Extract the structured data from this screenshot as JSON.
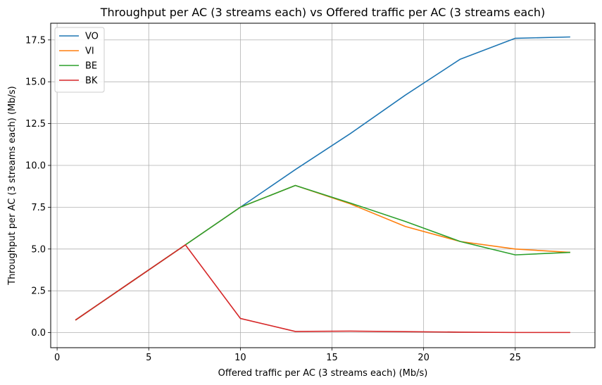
{
  "chart_data": {
    "type": "line",
    "title": "Throughput per AC (3 streams each) vs Offered traffic per AC (3 streams each)",
    "xlabel": "Offered traffic per AC (3 streams each) (Mb/s)",
    "ylabel": "Throughput per AC (3 streams each) (Mb/s)",
    "xlim": [
      -0.35,
      29.35
    ],
    "ylim": [
      -0.9,
      18.5
    ],
    "xticks": [
      0,
      5,
      10,
      15,
      20,
      25
    ],
    "xtick_labels": [
      "0",
      "5",
      "10",
      "15",
      "20",
      "25"
    ],
    "yticks": [
      0,
      2.5,
      5,
      7.5,
      10,
      12.5,
      15,
      17.5
    ],
    "ytick_labels": [
      "0.0",
      "2.5",
      "5.0",
      "7.5",
      "10.0",
      "12.5",
      "15.0",
      "17.5"
    ],
    "grid": true,
    "legend_position": "top-left",
    "x": [
      1,
      4,
      7,
      10,
      13,
      16,
      19,
      22,
      25,
      28
    ],
    "series": [
      {
        "name": "VO",
        "color": "#1f77b4",
        "values": [
          0.75,
          3.0,
          5.25,
          7.5,
          9.75,
          11.9,
          14.2,
          16.35,
          17.6,
          17.68
        ]
      },
      {
        "name": "VI",
        "color": "#ff7f0e",
        "values": [
          0.75,
          3.0,
          5.25,
          7.5,
          8.8,
          7.7,
          6.35,
          5.45,
          5.0,
          4.8
        ]
      },
      {
        "name": "BE",
        "color": "#2ca02c",
        "values": [
          0.75,
          3.0,
          5.25,
          7.5,
          8.8,
          7.75,
          6.65,
          5.45,
          4.65,
          4.8
        ]
      },
      {
        "name": "BK",
        "color": "#d62728",
        "values": [
          0.75,
          3.0,
          5.25,
          0.85,
          0.07,
          0.09,
          0.06,
          0.03,
          0.01,
          0.01
        ]
      }
    ]
  }
}
